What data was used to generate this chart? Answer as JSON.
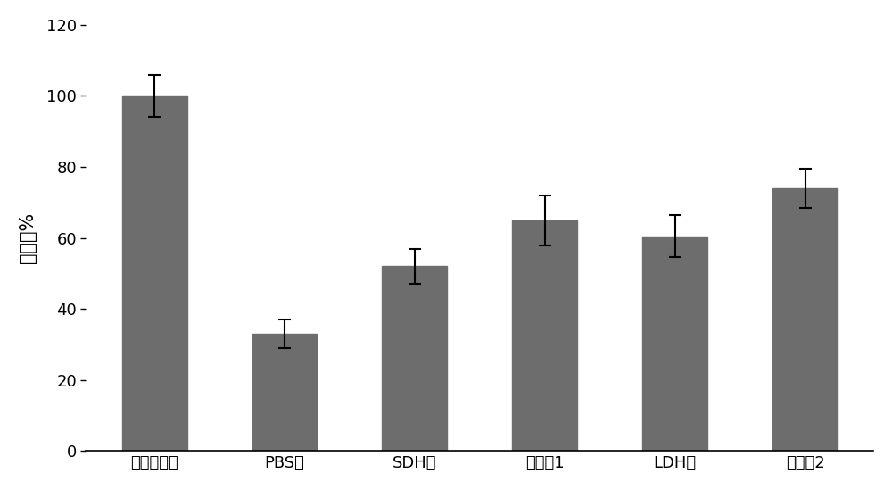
{
  "categories": [
    "空白对照组",
    "PBS组",
    "SDH组",
    "联合组1",
    "LDH组",
    "联合组2"
  ],
  "values": [
    100,
    33,
    52,
    65,
    60.5,
    74
  ],
  "errors": [
    6,
    4,
    5,
    7,
    6,
    5.5
  ],
  "bar_color": "#6d6d6d",
  "ylabel": "存活率%",
  "ylim": [
    0,
    120
  ],
  "yticks": [
    0,
    20,
    40,
    60,
    80,
    100,
    120
  ],
  "bar_width": 0.5,
  "figsize": [
    10.0,
    5.49
  ],
  "dpi": 100,
  "ylabel_fontsize": 15,
  "tick_fontsize": 13,
  "bg_color": "#ffffff"
}
